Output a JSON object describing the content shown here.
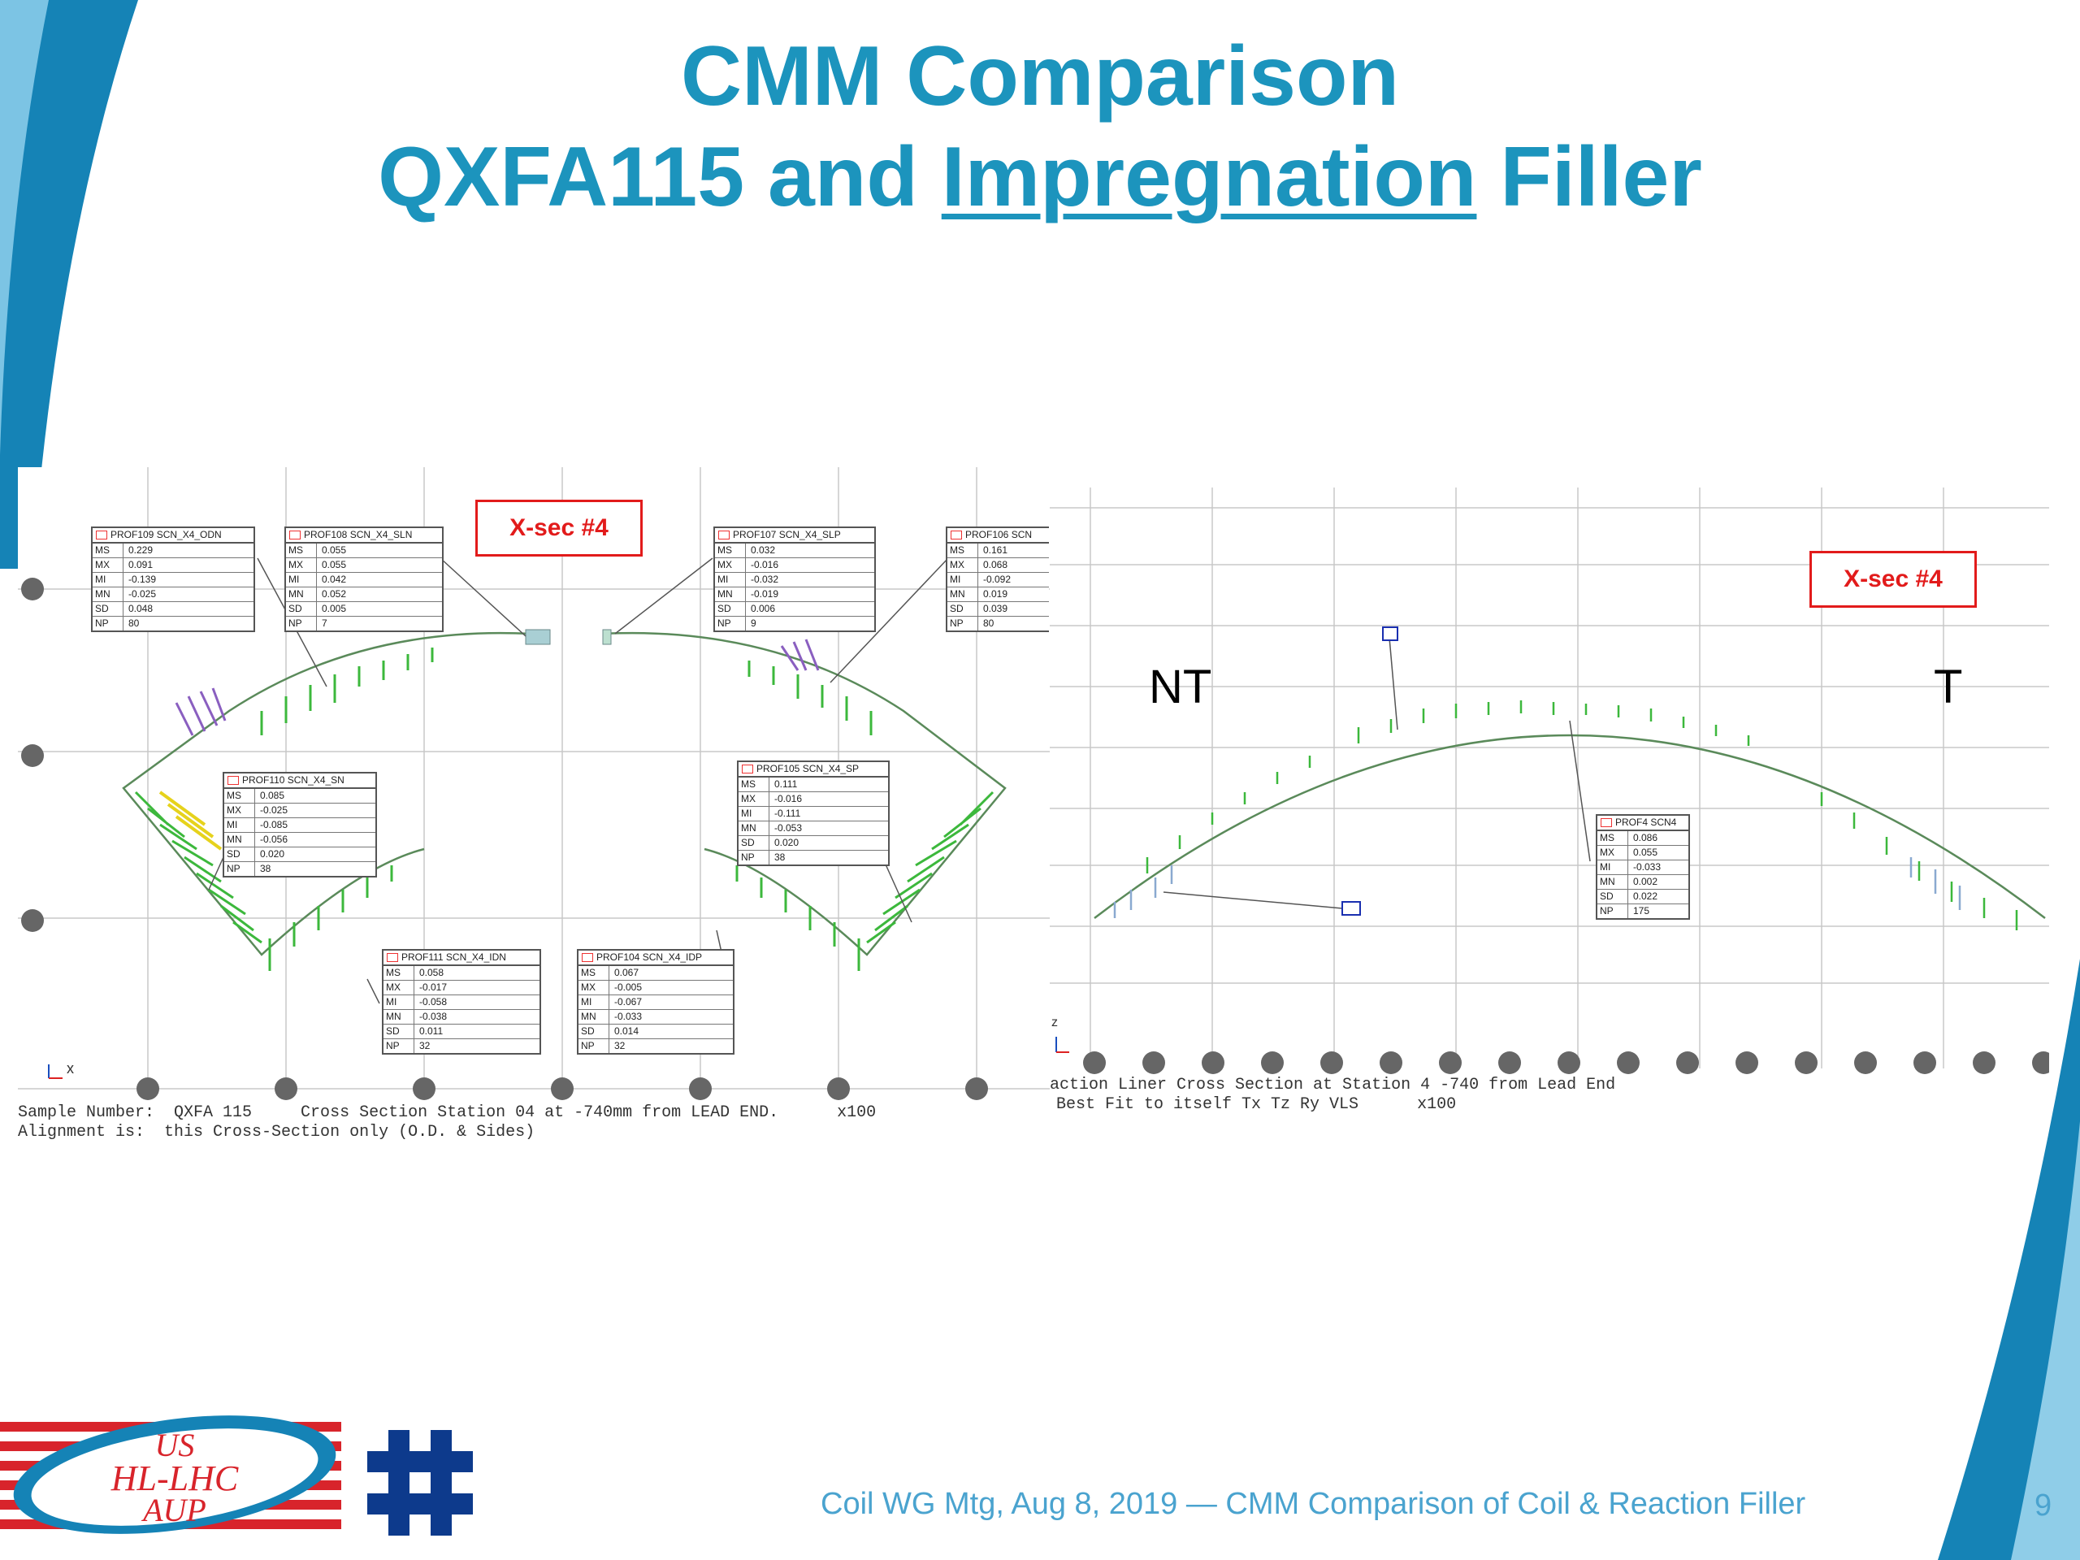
{
  "slide": {
    "title_line1": "CMM Comparison",
    "title_line2_pre": "QXFA115 and ",
    "title_line2_underlined": "Impregnation",
    "title_line2_post": " Filler",
    "footer": "Coil WG Mtg, Aug 8, 2019 — CMM Comparison of Coil & Reaction Filler",
    "page_number": "9",
    "colors": {
      "title": "#1c94bd",
      "accent_blue": "#1583b6",
      "callout_red": "#e21b1b",
      "deviation_green": "#3cb83c"
    }
  },
  "logos": {
    "us_hl_lhc_aup": [
      "US",
      "HL-LHC",
      "AUP"
    ],
    "fermilab": "fermilab-logo-icon"
  },
  "left_panel": {
    "callout": "X-sec #4",
    "caption_line1": "Sample Number:  QXFA 115     Cross Section Station 04 at -740mm from LEAD END.      x100",
    "caption_line2": "Alignment is:  this Cross-Section only (O.D. & Sides)",
    "axis_label": "x",
    "tables": [
      {
        "title": "PROF109 SCN_X4_ODN",
        "rows": [
          [
            "MS",
            "0.229"
          ],
          [
            "MX",
            "0.091"
          ],
          [
            "MI",
            "-0.139"
          ],
          [
            "MN",
            "-0.025"
          ],
          [
            "SD",
            "0.048"
          ],
          [
            "NP",
            "80"
          ]
        ]
      },
      {
        "title": "PROF108 SCN_X4_SLN",
        "rows": [
          [
            "MS",
            "0.055"
          ],
          [
            "MX",
            "0.055"
          ],
          [
            "MI",
            "0.042"
          ],
          [
            "MN",
            "0.052"
          ],
          [
            "SD",
            "0.005"
          ],
          [
            "NP",
            "7"
          ]
        ]
      },
      {
        "title": "PROF107 SCN_X4_SLP",
        "rows": [
          [
            "MS",
            "0.032"
          ],
          [
            "MX",
            "-0.016"
          ],
          [
            "MI",
            "-0.032"
          ],
          [
            "MN",
            "-0.019"
          ],
          [
            "SD",
            "0.006"
          ],
          [
            "NP",
            "9"
          ]
        ]
      },
      {
        "title": "PROF106 SCN",
        "rows": [
          [
            "MS",
            "0.161"
          ],
          [
            "MX",
            "0.068"
          ],
          [
            "MI",
            "-0.092"
          ],
          [
            "MN",
            "0.019"
          ],
          [
            "SD",
            "0.039"
          ],
          [
            "NP",
            "80"
          ]
        ]
      },
      {
        "title": "PROF110 SCN_X4_SN",
        "rows": [
          [
            "MS",
            "0.085"
          ],
          [
            "MX",
            "-0.025"
          ],
          [
            "MI",
            "-0.085"
          ],
          [
            "MN",
            "-0.056"
          ],
          [
            "SD",
            "0.020"
          ],
          [
            "NP",
            "38"
          ]
        ]
      },
      {
        "title": "PROF105 SCN_X4_SP",
        "rows": [
          [
            "MS",
            "0.111"
          ],
          [
            "MX",
            "-0.016"
          ],
          [
            "MI",
            "-0.111"
          ],
          [
            "MN",
            "-0.053"
          ],
          [
            "SD",
            "0.020"
          ],
          [
            "NP",
            "38"
          ]
        ]
      },
      {
        "title": "PROF111 SCN_X4_IDN",
        "rows": [
          [
            "MS",
            "0.058"
          ],
          [
            "MX",
            "-0.017"
          ],
          [
            "MI",
            "-0.058"
          ],
          [
            "MN",
            "-0.038"
          ],
          [
            "SD",
            "0.011"
          ],
          [
            "NP",
            "32"
          ]
        ]
      },
      {
        "title": "PROF104 SCN_X4_IDP",
        "rows": [
          [
            "MS",
            "0.067"
          ],
          [
            "MX",
            "-0.005"
          ],
          [
            "MI",
            "-0.067"
          ],
          [
            "MN",
            "-0.033"
          ],
          [
            "SD",
            "0.014"
          ],
          [
            "NP",
            "32"
          ]
        ]
      }
    ]
  },
  "right_panel": {
    "callout": "X-sec #4",
    "label_nt": "NT",
    "label_t": "T",
    "caption_line1": "action Liner Cross Section at Station 4 -740 from Lead End",
    "caption_line2": "Best Fit to itself Tx Tz Ry VLS      x100",
    "axis_label": "z",
    "table": {
      "title": "PROF4 SCN4",
      "rows": [
        [
          "MS",
          "0.086"
        ],
        [
          "MX",
          "0.055"
        ],
        [
          "MI",
          "-0.033"
        ],
        [
          "MN",
          "0.002"
        ],
        [
          "SD",
          "0.022"
        ],
        [
          "NP",
          "175"
        ]
      ]
    }
  }
}
